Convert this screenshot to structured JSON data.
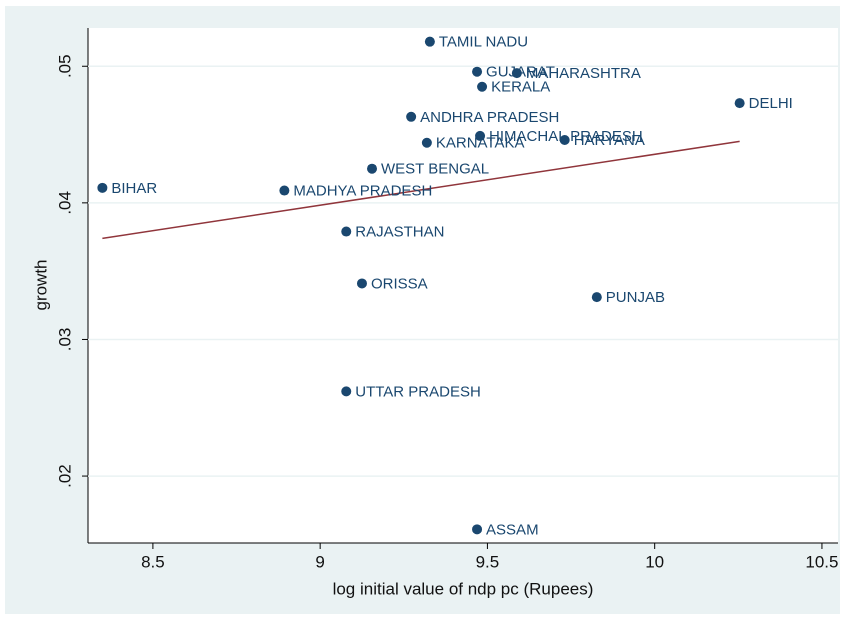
{
  "chart_data": {
    "type": "scatter",
    "x_label": "log initial value of ndp pc (Rupees)",
    "y_label": "growth",
    "point_labels": [
      "TAMIL NADU",
      "GUJARAT",
      "MAHARASHTRA",
      "KERALA",
      "ANDHRA PRADESH",
      "DELHI",
      "HIMACHAL PRADESH",
      "KARNATAKA",
      "HARYANA",
      "WEST BENGAL",
      "BIHAR",
      "MADHYA PRADESH",
      "RAJASTHAN",
      "ORISSA",
      "PUNJAB",
      "UTTAR PRADESH",
      "ASSAM"
    ],
    "x": [
      9.328,
      9.469,
      9.588,
      9.484,
      9.272,
      10.254,
      9.478,
      9.319,
      9.731,
      9.155,
      8.349,
      8.893,
      9.078,
      9.125,
      9.827,
      9.078,
      9.469
    ],
    "values": [
      0.0518,
      0.0496,
      0.0495,
      0.0485,
      0.0463,
      0.0473,
      0.0449,
      0.0444,
      0.0446,
      0.0425,
      0.0411,
      0.0409,
      0.0379,
      0.0341,
      0.0331,
      0.0262,
      0.0161
    ],
    "color": "#1a476f",
    "fit": {
      "x": [
        8.349,
        10.254
      ],
      "values": [
        0.0374,
        0.0445
      ],
      "color": "#90353b"
    },
    "xlim": [
      8.306,
      10.548
    ],
    "ylim": [
      0.0151,
      0.0528
    ],
    "xticks": [
      8.5,
      9,
      9.5,
      10,
      10.5
    ],
    "yticks": [
      {
        "value": 0.02,
        "label": ".02"
      },
      {
        "value": 0.03,
        "label": ".03"
      },
      {
        "value": 0.04,
        "label": ".04"
      },
      {
        "value": 0.05,
        "label": ".05"
      }
    ],
    "grid": true
  }
}
